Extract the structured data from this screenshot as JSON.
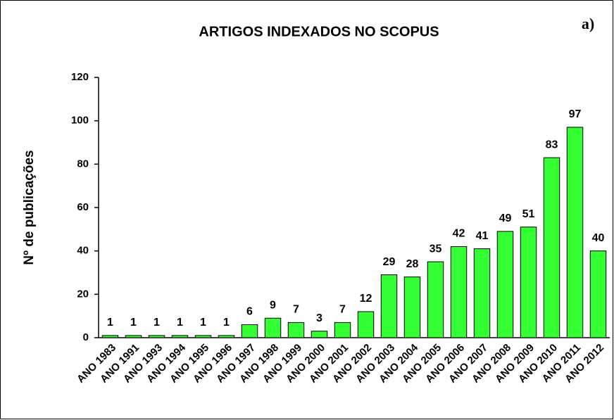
{
  "chart_data": {
    "type": "bar",
    "title": "ARTIGOS INDEXADOS NO SCOPUS",
    "annotation": "a)",
    "y_label": "Nº de publicações",
    "categories": [
      "ANO 1983",
      "ANO 1991",
      "ANO 1993",
      "ANO 1994",
      "ANO 1995",
      "ANO 1996",
      "ANO 1997",
      "ANO 1998",
      "ANO 1999",
      "ANO 2000",
      "ANO 2001",
      "ANO 2002",
      "ANO 2003",
      "ANO 2004",
      "ANO 2005",
      "ANO 2006",
      "ANO 2007",
      "ANO 2008",
      "ANO 2009",
      "ANO 2010",
      "ANO 2011",
      "ANO 2012"
    ],
    "values": [
      1,
      1,
      1,
      1,
      1,
      1,
      6,
      9,
      7,
      3,
      7,
      12,
      29,
      28,
      35,
      42,
      41,
      49,
      51,
      83,
      97,
      40
    ],
    "color": "#33ff33",
    "ylim": [
      0,
      120
    ],
    "yticks": [
      0,
      20,
      40,
      60,
      80,
      100,
      120
    ],
    "grid": false
  }
}
